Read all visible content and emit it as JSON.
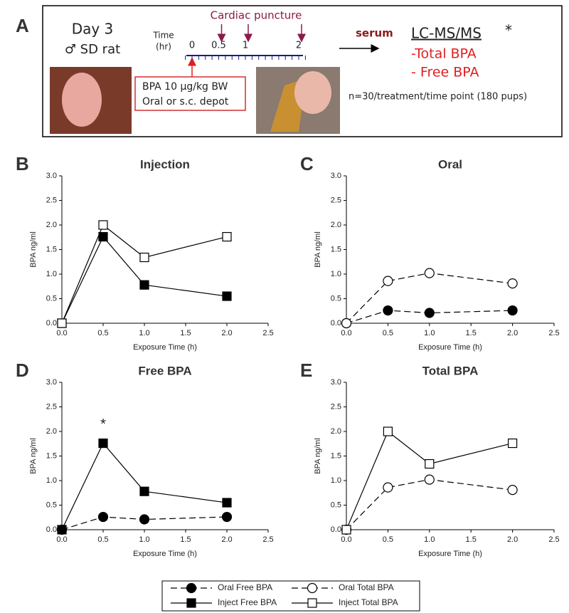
{
  "schematic": {
    "panel": "A",
    "day": "Day 3",
    "animal": "♂ SD rat",
    "time_label": [
      "Time",
      "(hr)"
    ],
    "timeline": {
      "lim": [
        0,
        2
      ],
      "ticks": [
        0,
        0.5,
        1,
        2
      ],
      "punctures": [
        0.5,
        1,
        2
      ]
    },
    "puncture_label": "Cardiac puncture",
    "dose": [
      "BPA 10 μg/kg BW",
      "Oral or s.c. depot"
    ],
    "serum": "serum",
    "method": "LC-MS/MS",
    "method_mark": "*",
    "analytes": [
      "-Total BPA",
      "- Free BPA"
    ],
    "n": "n=30/treatment/time point (180 pups)"
  },
  "chart_data": [
    {
      "type": "line",
      "panel": "B",
      "title": "Injection",
      "xlabel": "Exposure Time (h)",
      "ylabel": "BPA ng/ml",
      "x": [
        0,
        0.5,
        1,
        2
      ],
      "xlim": [
        0,
        2.5
      ],
      "xticks": [
        {
          "value": 0,
          "label": "0.0"
        },
        {
          "value": 0.5,
          "label": "0.5"
        },
        {
          "value": 1,
          "label": "1.0"
        },
        {
          "value": 1.5,
          "label": "1.5"
        },
        {
          "value": 2,
          "label": "2.0"
        },
        {
          "value": 2.5,
          "label": "2.5"
        }
      ],
      "ylim": [
        0,
        3
      ],
      "yticks": [
        {
          "value": 0,
          "label": "0.0"
        },
        {
          "value": 0.5,
          "label": "0.5"
        },
        {
          "value": 1,
          "label": "1.0"
        },
        {
          "value": 1.5,
          "label": "1.5"
        },
        {
          "value": 2,
          "label": "2.0"
        },
        {
          "value": 2.5,
          "label": "2.5"
        },
        {
          "value": 3,
          "label": "3.0"
        }
      ],
      "series": [
        {
          "marker": "square",
          "filled": true,
          "dashed": false,
          "color": "#000000",
          "values": [
            0,
            1.76,
            0.78,
            0.55
          ]
        },
        {
          "marker": "square",
          "filled": false,
          "dashed": false,
          "color": "#000000",
          "values": [
            0,
            2.0,
            1.34,
            1.76
          ]
        }
      ]
    },
    {
      "type": "line",
      "panel": "C",
      "title": "Oral",
      "xlabel": "Exposure Time (h)",
      "ylabel": "BPA ng/ml",
      "x": [
        0,
        0.5,
        1,
        2
      ],
      "xlim": [
        0,
        2.5
      ],
      "xticks": [
        {
          "value": 0,
          "label": "0.0"
        },
        {
          "value": 0.5,
          "label": "0.5"
        },
        {
          "value": 1,
          "label": "1.0"
        },
        {
          "value": 1.5,
          "label": "1.5"
        },
        {
          "value": 2,
          "label": "2.0"
        },
        {
          "value": 2.5,
          "label": "2.5"
        }
      ],
      "ylim": [
        0,
        3
      ],
      "yticks": [
        {
          "value": 0,
          "label": "0.0"
        },
        {
          "value": 0.5,
          "label": "0.5"
        },
        {
          "value": 1,
          "label": "1.0"
        },
        {
          "value": 1.5,
          "label": "1.5"
        },
        {
          "value": 2,
          "label": "2.0"
        },
        {
          "value": 2.5,
          "label": "2.5"
        },
        {
          "value": 3,
          "label": "3.0"
        }
      ],
      "series": [
        {
          "marker": "circle",
          "filled": true,
          "dashed": true,
          "color": "#000000",
          "values": [
            0,
            0.26,
            0.21,
            0.26
          ]
        },
        {
          "marker": "circle",
          "filled": false,
          "dashed": true,
          "color": "#000000",
          "values": [
            0,
            0.86,
            1.02,
            0.81
          ]
        }
      ]
    },
    {
      "type": "line",
      "panel": "D",
      "title": "Free BPA",
      "xlabel": "Exposure Time (h)",
      "ylabel": "BPA ng/ml",
      "x": [
        0,
        0.5,
        1,
        2
      ],
      "xlim": [
        0,
        2.5
      ],
      "xticks": [
        {
          "value": 0,
          "label": "0.0"
        },
        {
          "value": 0.5,
          "label": "0.5"
        },
        {
          "value": 1,
          "label": "1.0"
        },
        {
          "value": 1.5,
          "label": "1.5"
        },
        {
          "value": 2,
          "label": "2.0"
        },
        {
          "value": 2.5,
          "label": "2.5"
        }
      ],
      "ylim": [
        0,
        3
      ],
      "yticks": [
        {
          "value": 0,
          "label": "0.0"
        },
        {
          "value": 0.5,
          "label": "0.5"
        },
        {
          "value": 1,
          "label": "1.0"
        },
        {
          "value": 1.5,
          "label": "1.5"
        },
        {
          "value": 2,
          "label": "2.0"
        },
        {
          "value": 2.5,
          "label": "2.5"
        },
        {
          "value": 3,
          "label": "3.0"
        }
      ],
      "annotations": [
        {
          "text": "*",
          "x": 0.5
        }
      ],
      "series": [
        {
          "name": "Oral Free BPA",
          "marker": "circle",
          "filled": true,
          "dashed": true,
          "color": "#000000",
          "values": [
            0,
            0.26,
            0.21,
            0.26
          ]
        },
        {
          "name": "Inject Free BPA",
          "marker": "square",
          "filled": true,
          "dashed": false,
          "color": "#000000",
          "values": [
            0,
            1.76,
            0.78,
            0.55
          ]
        }
      ]
    },
    {
      "type": "line",
      "panel": "E",
      "title": "Total BPA",
      "xlabel": "Exposure Time (h)",
      "ylabel": "BPA ng/ml",
      "x": [
        0,
        0.5,
        1,
        2
      ],
      "xlim": [
        0,
        2.5
      ],
      "xticks": [
        {
          "value": 0,
          "label": "0.0"
        },
        {
          "value": 0.5,
          "label": "0.5"
        },
        {
          "value": 1,
          "label": "1.0"
        },
        {
          "value": 1.5,
          "label": "1.5"
        },
        {
          "value": 2,
          "label": "2.0"
        },
        {
          "value": 2.5,
          "label": "2.5"
        }
      ],
      "ylim": [
        0,
        3
      ],
      "yticks": [
        {
          "value": 0,
          "label": "0.0"
        },
        {
          "value": 0.5,
          "label": "0.5"
        },
        {
          "value": 1,
          "label": "1.0"
        },
        {
          "value": 1.5,
          "label": "1.5"
        },
        {
          "value": 2,
          "label": "2.0"
        },
        {
          "value": 2.5,
          "label": "2.5"
        },
        {
          "value": 3,
          "label": "3.0"
        }
      ],
      "series": [
        {
          "name": "Oral Total BPA",
          "marker": "circle",
          "filled": false,
          "dashed": true,
          "color": "#000000",
          "values": [
            0,
            0.86,
            1.02,
            0.81
          ]
        },
        {
          "name": "Inject Total BPA",
          "marker": "square",
          "filled": false,
          "dashed": false,
          "color": "#000000",
          "values": [
            0,
            2.0,
            1.34,
            1.76
          ]
        }
      ]
    }
  ]
}
